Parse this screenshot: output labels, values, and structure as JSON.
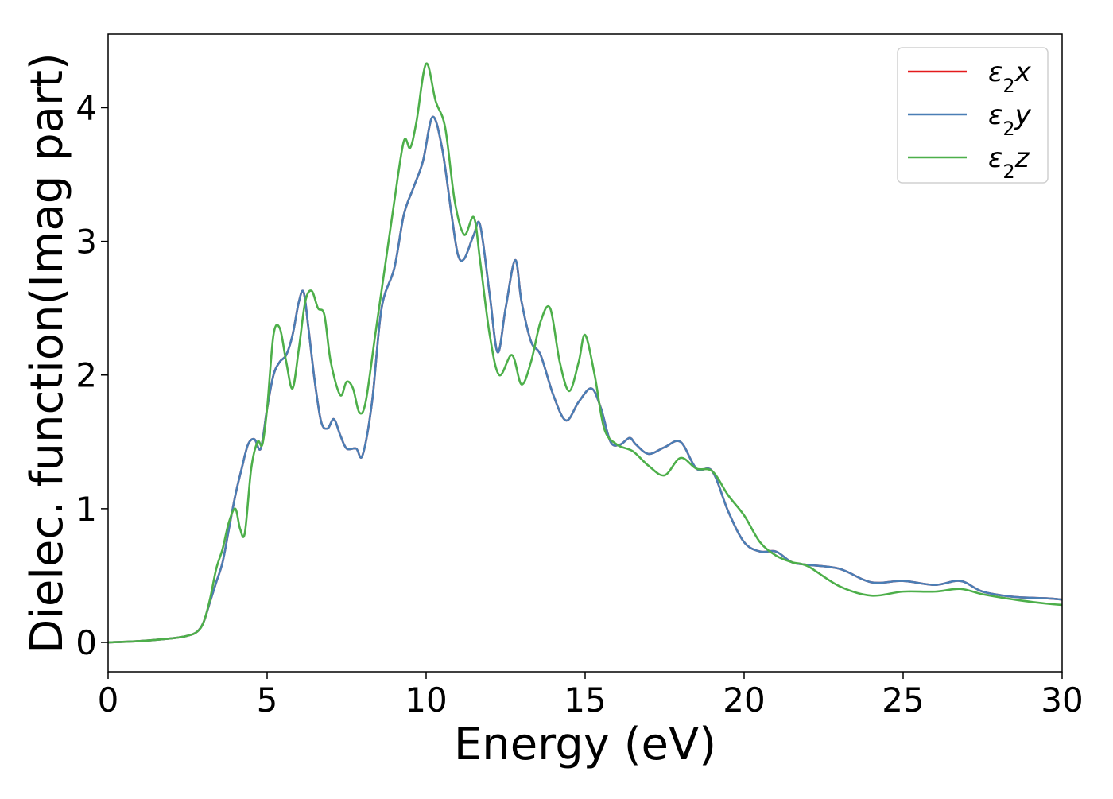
{
  "chart_data": {
    "type": "line",
    "title": "",
    "xlabel": "Energy (eV)",
    "ylabel": "Dielec. function(Imag part)",
    "xlim": [
      0,
      30
    ],
    "ylim": [
      -0.22,
      4.55
    ],
    "xticks": [
      0,
      5,
      10,
      15,
      20,
      25,
      30
    ],
    "yticks": [
      0,
      1,
      2,
      3,
      4
    ],
    "grid": false,
    "legend_position": "top-right",
    "series": [
      {
        "name": "ε2x",
        "legend_base": "ε",
        "legend_sub": "2",
        "legend_suffix": "x",
        "color": "#e41a1c",
        "x": [
          0,
          1,
          2,
          2.5,
          2.8,
          3.0,
          3.2,
          3.4,
          3.6,
          3.8,
          4.0,
          4.2,
          4.4,
          4.6,
          4.8,
          5.0,
          5.2,
          5.4,
          5.6,
          5.8,
          6.0,
          6.15,
          6.3,
          6.5,
          6.7,
          6.9,
          7.1,
          7.3,
          7.5,
          7.8,
          8.0,
          8.3,
          8.6,
          9.0,
          9.3,
          9.6,
          9.9,
          10.2,
          10.5,
          10.8,
          11.0,
          11.2,
          11.5,
          11.7,
          12.0,
          12.25,
          12.5,
          12.8,
          13.0,
          13.3,
          13.6,
          14.0,
          14.4,
          14.8,
          15.2,
          15.5,
          15.8,
          16.1,
          16.4,
          16.6,
          17.0,
          17.5,
          18.0,
          18.5,
          19.0,
          19.5,
          20.0,
          20.5,
          21.0,
          21.5,
          22.0,
          23.0,
          24.0,
          25.0,
          26.0,
          26.8,
          27.5,
          28.5,
          29.5,
          30.0
        ],
        "y": [
          0,
          0.01,
          0.03,
          0.05,
          0.08,
          0.15,
          0.3,
          0.45,
          0.6,
          0.85,
          1.1,
          1.3,
          1.48,
          1.52,
          1.45,
          1.75,
          2.0,
          2.1,
          2.15,
          2.3,
          2.55,
          2.62,
          2.35,
          1.95,
          1.65,
          1.6,
          1.67,
          1.55,
          1.45,
          1.45,
          1.4,
          1.8,
          2.5,
          2.8,
          3.2,
          3.4,
          3.6,
          3.93,
          3.7,
          3.2,
          2.9,
          2.87,
          3.05,
          3.12,
          2.6,
          2.17,
          2.5,
          2.86,
          2.55,
          2.25,
          2.15,
          1.85,
          1.66,
          1.8,
          1.9,
          1.75,
          1.5,
          1.48,
          1.53,
          1.48,
          1.41,
          1.46,
          1.5,
          1.3,
          1.28,
          0.98,
          0.75,
          0.68,
          0.68,
          0.6,
          0.58,
          0.55,
          0.45,
          0.46,
          0.43,
          0.46,
          0.38,
          0.34,
          0.33,
          0.32
        ]
      },
      {
        "name": "ε2y",
        "legend_base": "ε",
        "legend_sub": "2",
        "legend_suffix": "y",
        "color": "#4a7eb5",
        "x": [
          0,
          1,
          2,
          2.5,
          2.8,
          3.0,
          3.2,
          3.4,
          3.6,
          3.8,
          4.0,
          4.2,
          4.4,
          4.6,
          4.8,
          5.0,
          5.2,
          5.4,
          5.6,
          5.8,
          6.0,
          6.15,
          6.3,
          6.5,
          6.7,
          6.9,
          7.1,
          7.3,
          7.5,
          7.8,
          8.0,
          8.3,
          8.6,
          9.0,
          9.3,
          9.6,
          9.9,
          10.2,
          10.5,
          10.8,
          11.0,
          11.2,
          11.5,
          11.7,
          12.0,
          12.25,
          12.5,
          12.8,
          13.0,
          13.3,
          13.6,
          14.0,
          14.4,
          14.8,
          15.2,
          15.5,
          15.8,
          16.1,
          16.4,
          16.6,
          17.0,
          17.5,
          18.0,
          18.5,
          19.0,
          19.5,
          20.0,
          20.5,
          21.0,
          21.5,
          22.0,
          23.0,
          24.0,
          25.0,
          26.0,
          26.8,
          27.5,
          28.5,
          29.5,
          30.0
        ],
        "y": [
          0,
          0.01,
          0.03,
          0.05,
          0.08,
          0.15,
          0.3,
          0.45,
          0.6,
          0.85,
          1.1,
          1.3,
          1.48,
          1.52,
          1.45,
          1.75,
          2.0,
          2.1,
          2.15,
          2.3,
          2.55,
          2.62,
          2.35,
          1.95,
          1.65,
          1.6,
          1.67,
          1.55,
          1.45,
          1.45,
          1.4,
          1.8,
          2.5,
          2.8,
          3.2,
          3.4,
          3.6,
          3.93,
          3.7,
          3.2,
          2.9,
          2.87,
          3.05,
          3.12,
          2.6,
          2.17,
          2.5,
          2.86,
          2.55,
          2.25,
          2.15,
          1.85,
          1.66,
          1.8,
          1.9,
          1.75,
          1.5,
          1.48,
          1.53,
          1.48,
          1.41,
          1.46,
          1.5,
          1.3,
          1.28,
          0.98,
          0.75,
          0.68,
          0.68,
          0.6,
          0.58,
          0.55,
          0.45,
          0.46,
          0.43,
          0.46,
          0.38,
          0.34,
          0.33,
          0.32
        ]
      },
      {
        "name": "ε2z",
        "legend_base": "ε",
        "legend_sub": "2",
        "legend_suffix": "z",
        "color": "#4daf4a",
        "x": [
          0,
          1,
          2,
          2.5,
          2.8,
          3.0,
          3.2,
          3.4,
          3.6,
          3.8,
          4.0,
          4.15,
          4.3,
          4.5,
          4.7,
          4.85,
          5.0,
          5.2,
          5.4,
          5.6,
          5.8,
          6.0,
          6.2,
          6.4,
          6.6,
          6.8,
          7.0,
          7.3,
          7.5,
          7.7,
          7.9,
          8.1,
          8.4,
          8.7,
          9.0,
          9.3,
          9.5,
          9.7,
          10.0,
          10.3,
          10.6,
          10.9,
          11.2,
          11.5,
          11.7,
          12.0,
          12.3,
          12.7,
          13.0,
          13.3,
          13.6,
          13.9,
          14.2,
          14.5,
          14.8,
          15.0,
          15.3,
          15.6,
          16.0,
          16.5,
          17.0,
          17.5,
          18.0,
          18.5,
          19.0,
          19.5,
          20.0,
          20.5,
          21.0,
          21.5,
          22.0,
          23.0,
          24.0,
          25.0,
          26.0,
          26.8,
          27.5,
          28.5,
          29.5,
          30.0
        ],
        "y": [
          0,
          0.01,
          0.03,
          0.05,
          0.08,
          0.15,
          0.32,
          0.55,
          0.7,
          0.9,
          1.0,
          0.85,
          0.82,
          1.3,
          1.5,
          1.48,
          1.75,
          2.3,
          2.35,
          2.1,
          1.9,
          2.2,
          2.55,
          2.63,
          2.5,
          2.45,
          2.1,
          1.85,
          1.95,
          1.9,
          1.72,
          1.8,
          2.3,
          2.8,
          3.3,
          3.75,
          3.7,
          3.9,
          4.33,
          4.05,
          3.85,
          3.3,
          3.05,
          3.18,
          2.85,
          2.3,
          2.0,
          2.15,
          1.93,
          2.1,
          2.4,
          2.5,
          2.1,
          1.88,
          2.1,
          2.3,
          2.0,
          1.6,
          1.48,
          1.43,
          1.32,
          1.25,
          1.38,
          1.3,
          1.28,
          1.1,
          0.95,
          0.75,
          0.65,
          0.6,
          0.57,
          0.42,
          0.35,
          0.38,
          0.38,
          0.4,
          0.36,
          0.32,
          0.29,
          0.28
        ]
      }
    ]
  }
}
